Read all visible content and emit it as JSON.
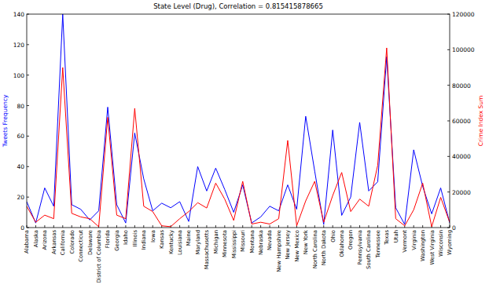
{
  "chart_data": {
    "type": "line",
    "title": "State Level (Drug), Correlation = 0.815415878665",
    "y_label": "Tweets Frequency",
    "y2_label": "Crime Index Sum",
    "categories": [
      "Alabama",
      "Alaska",
      "Arizona",
      "Arkansas",
      "California",
      "Colorado",
      "Connecticut",
      "Delaware",
      "District of Columbia",
      "Florida",
      "Georgia",
      "Idaho",
      "Illinois",
      "Indiana",
      "Iowa",
      "Kansas",
      "Kentucky",
      "Louisiana",
      "Maine",
      "Maryland",
      "Massachusetts",
      "Michigan",
      "Minnesota",
      "Mississippi",
      "Missouri",
      "Montana",
      "Nebraska",
      "Nevada",
      "New Hampshire",
      "New Jersey",
      "New Mexico",
      "New York",
      "North Carolina",
      "North Dakota",
      "Ohio",
      "Oklahoma",
      "Oregon",
      "Pennsylvania",
      "South Carolina",
      "Tennessee",
      "Texas",
      "Utah",
      "Vermont",
      "Virginia",
      "Washington",
      "West Virginia",
      "Wisconsin",
      "Wyoming"
    ],
    "series": [
      {
        "name": "Tweets Frequency",
        "color": "#0000ff",
        "values": [
          17,
          3,
          26,
          14,
          140,
          15,
          12,
          5,
          11,
          79,
          15,
          3,
          62,
          32,
          11,
          16,
          13,
          17,
          4,
          40,
          24,
          39,
          25,
          10,
          28,
          3,
          7,
          14,
          11,
          28,
          12,
          73,
          37,
          2,
          64,
          8,
          20,
          69,
          24,
          30,
          112,
          13,
          2,
          51,
          27,
          9,
          26,
          3
        ]
      },
      {
        "name": "Crime Index Sum",
        "color": "#ff0000",
        "axis": "y2",
        "values": [
          12000,
          3000,
          7000,
          5000,
          90000,
          8000,
          6000,
          5000,
          500,
          62000,
          7000,
          5000,
          67000,
          12000,
          9000,
          1000,
          500,
          5000,
          9000,
          14000,
          11000,
          25000,
          16000,
          4000,
          26000,
          2000,
          3000,
          2000,
          5000,
          49000,
          1000,
          15000,
          26000,
          3000,
          18000,
          31000,
          9000,
          16000,
          12000,
          35000,
          101000,
          5000,
          1000,
          10000,
          25000,
          500,
          17000,
          3000
        ]
      }
    ],
    "ylim": [
      0,
      140
    ],
    "yticks": [
      0,
      20,
      40,
      60,
      80,
      100,
      120,
      140
    ],
    "y2lim": [
      0,
      120000
    ],
    "y2ticks": [
      0,
      20000,
      40000,
      60000,
      80000,
      100000,
      120000
    ],
    "grid": false
  }
}
